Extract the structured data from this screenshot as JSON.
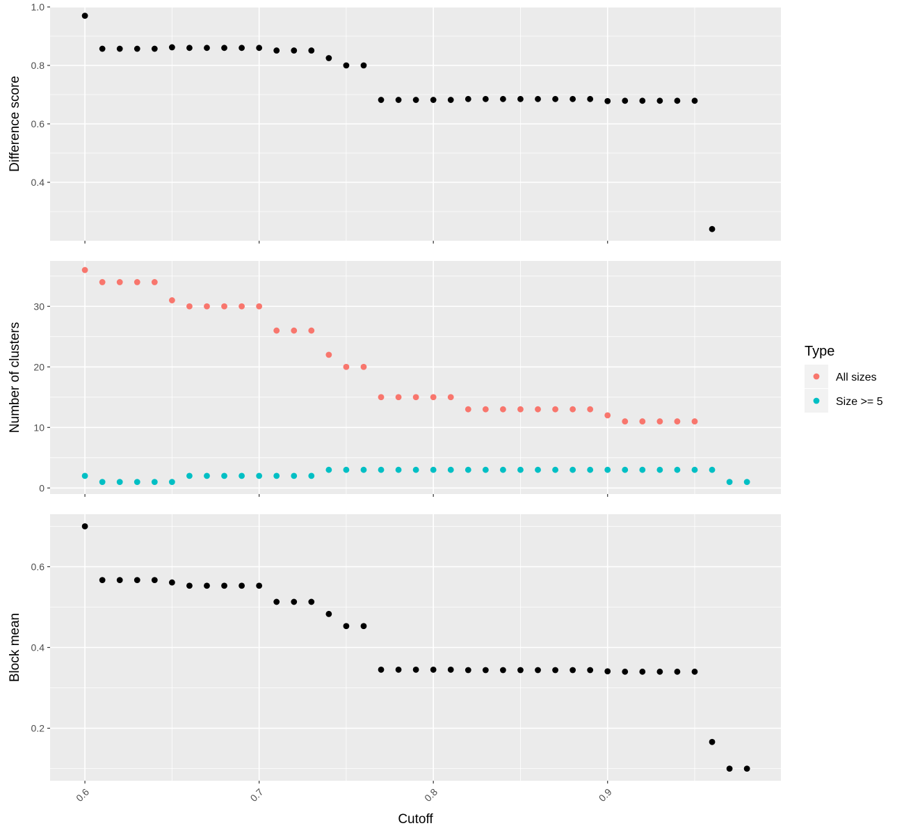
{
  "chart_data": [
    {
      "type": "scatter",
      "ylabel": "Difference score",
      "xlabel": "",
      "ylim": [
        0.2,
        1.0
      ],
      "yticks": [
        0.4,
        0.6,
        0.8,
        1.0
      ],
      "ytick_labels": [
        "0.4",
        "0.6",
        "0.8",
        "1.0"
      ],
      "xlim": [
        0.58,
        0.9995
      ],
      "grid": true,
      "series": [
        {
          "color": "#000000",
          "x": [
            0.6,
            0.61,
            0.62,
            0.63,
            0.64,
            0.65,
            0.66,
            0.67,
            0.68,
            0.69,
            0.7,
            0.71,
            0.72,
            0.73,
            0.74,
            0.75,
            0.76,
            0.77,
            0.78,
            0.79,
            0.8,
            0.81,
            0.82,
            0.83,
            0.84,
            0.85,
            0.86,
            0.87,
            0.88,
            0.89,
            0.9,
            0.91,
            0.92,
            0.93,
            0.94,
            0.95,
            0.96
          ],
          "y": [
            0.97,
            0.857,
            0.857,
            0.857,
            0.857,
            0.862,
            0.86,
            0.86,
            0.86,
            0.86,
            0.86,
            0.851,
            0.851,
            0.851,
            0.825,
            0.8,
            0.8,
            0.682,
            0.682,
            0.682,
            0.682,
            0.682,
            0.685,
            0.685,
            0.685,
            0.685,
            0.685,
            0.685,
            0.685,
            0.685,
            0.678,
            0.679,
            0.679,
            0.679,
            0.679,
            0.679,
            0.24
          ]
        }
      ]
    },
    {
      "type": "scatter",
      "ylabel": "Number of clusters",
      "xlabel": "",
      "ylim": [
        -1.0,
        37.5
      ],
      "yticks": [
        0,
        10,
        20,
        30
      ],
      "ytick_labels": [
        "0",
        "10",
        "20",
        "30"
      ],
      "xlim": [
        0.58,
        0.9995
      ],
      "grid": true,
      "legend": {
        "title": "Type",
        "position": "right"
      },
      "series": [
        {
          "name": "All sizes",
          "color": "#F8766D",
          "x": [
            0.6,
            0.61,
            0.62,
            0.63,
            0.64,
            0.65,
            0.66,
            0.67,
            0.68,
            0.69,
            0.7,
            0.71,
            0.72,
            0.73,
            0.74,
            0.75,
            0.76,
            0.77,
            0.78,
            0.79,
            0.8,
            0.81,
            0.82,
            0.83,
            0.84,
            0.85,
            0.86,
            0.87,
            0.88,
            0.89,
            0.9,
            0.91,
            0.92,
            0.93,
            0.94,
            0.95
          ],
          "y": [
            36,
            34,
            34,
            34,
            34,
            31,
            30,
            30,
            30,
            30,
            30,
            26,
            26,
            26,
            22,
            20,
            20,
            15,
            15,
            15,
            15,
            15,
            13,
            13,
            13,
            13,
            13,
            13,
            13,
            13,
            12,
            11,
            11,
            11,
            11,
            11
          ]
        },
        {
          "name": "Size >= 5",
          "color": "#00BFC4",
          "x": [
            0.6,
            0.61,
            0.62,
            0.63,
            0.64,
            0.65,
            0.66,
            0.67,
            0.68,
            0.69,
            0.7,
            0.71,
            0.72,
            0.73,
            0.74,
            0.75,
            0.76,
            0.77,
            0.78,
            0.79,
            0.8,
            0.81,
            0.82,
            0.83,
            0.84,
            0.85,
            0.86,
            0.87,
            0.88,
            0.89,
            0.9,
            0.91,
            0.92,
            0.93,
            0.94,
            0.95,
            0.96,
            0.97,
            0.98
          ],
          "y": [
            2,
            1,
            1,
            1,
            1,
            1,
            2,
            2,
            2,
            2,
            2,
            2,
            2,
            2,
            3,
            3,
            3,
            3,
            3,
            3,
            3,
            3,
            3,
            3,
            3,
            3,
            3,
            3,
            3,
            3,
            3,
            3,
            3,
            3,
            3,
            3,
            3,
            1,
            1
          ]
        }
      ]
    },
    {
      "type": "scatter",
      "ylabel": "Block mean",
      "xlabel": "Cutoff",
      "ylim": [
        0.07,
        0.73
      ],
      "yticks": [
        0.2,
        0.4,
        0.6
      ],
      "ytick_labels": [
        "0.2",
        "0.4",
        "0.6"
      ],
      "xlim": [
        0.58,
        0.9995
      ],
      "xticks": [
        0.6,
        0.7,
        0.8,
        0.9
      ],
      "xtick_labels": [
        "0.6",
        "0.7",
        "0.8",
        "0.9"
      ],
      "grid": true,
      "series": [
        {
          "color": "#000000",
          "x": [
            0.6,
            0.61,
            0.62,
            0.63,
            0.64,
            0.65,
            0.66,
            0.67,
            0.68,
            0.69,
            0.7,
            0.71,
            0.72,
            0.73,
            0.74,
            0.75,
            0.76,
            0.77,
            0.78,
            0.79,
            0.8,
            0.81,
            0.82,
            0.83,
            0.84,
            0.85,
            0.86,
            0.87,
            0.88,
            0.89,
            0.9,
            0.91,
            0.92,
            0.93,
            0.94,
            0.95,
            0.96,
            0.97,
            0.98
          ],
          "y": [
            0.7,
            0.567,
            0.567,
            0.567,
            0.567,
            0.561,
            0.553,
            0.553,
            0.553,
            0.553,
            0.553,
            0.513,
            0.513,
            0.513,
            0.483,
            0.453,
            0.453,
            0.345,
            0.345,
            0.345,
            0.345,
            0.345,
            0.344,
            0.344,
            0.344,
            0.344,
            0.344,
            0.344,
            0.344,
            0.344,
            0.341,
            0.34,
            0.34,
            0.34,
            0.34,
            0.34,
            0.166,
            0.1,
            0.1
          ]
        }
      ]
    }
  ]
}
